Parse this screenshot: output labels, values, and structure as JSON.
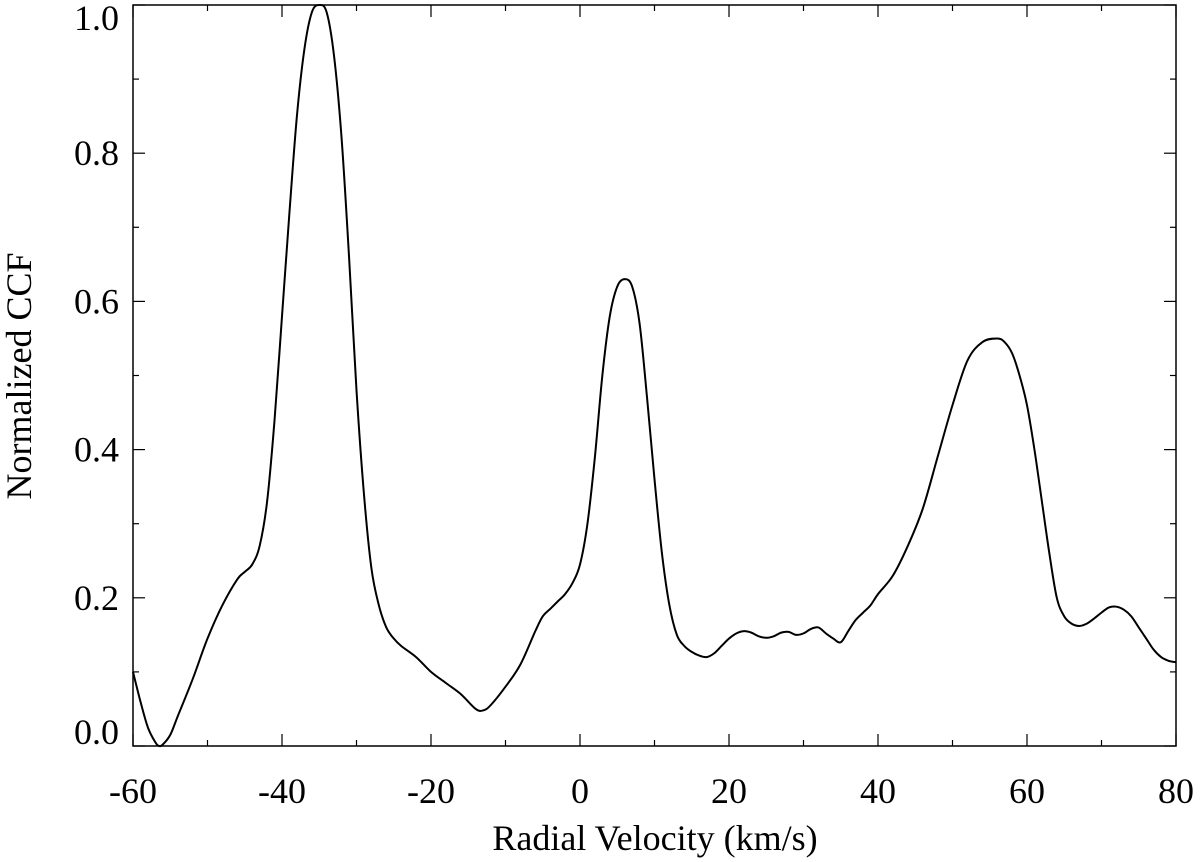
{
  "chart_data": {
    "type": "line",
    "title": "",
    "xlabel": "Radial Velocity (km/s)",
    "ylabel": "Normalized CCF",
    "xlim": [
      -60,
      80
    ],
    "ylim": [
      0.0,
      1.0
    ],
    "x_ticks": [
      -60,
      -40,
      -20,
      0,
      20,
      40,
      60,
      80
    ],
    "x_tick_labels": [
      "-60",
      "-40",
      "-20",
      "0",
      "20",
      "40",
      "60",
      "80"
    ],
    "y_ticks": [
      0.0,
      0.2,
      0.4,
      0.6,
      0.8,
      1.0
    ],
    "y_tick_labels": [
      "0.0",
      "0.2",
      "0.4",
      "0.6",
      "0.8",
      "1.0"
    ],
    "grid": false,
    "line_color": "#000000",
    "series": [
      {
        "x": [
          -60,
          -59,
          -58,
          -57,
          -56.5,
          -56,
          -55,
          -54,
          -52,
          -50,
          -48,
          -46,
          -45,
          -44,
          -43,
          -42,
          -41,
          -40,
          -39,
          -38,
          -37,
          -36,
          -35,
          -34,
          -33,
          -32,
          -31,
          -30,
          -29,
          -28,
          -27,
          -26,
          -25,
          -24,
          -22,
          -20,
          -18,
          -16,
          -14,
          -13,
          -12,
          -10,
          -8,
          -6,
          -5,
          -4,
          -3,
          -2,
          -1,
          0,
          1,
          2,
          3,
          4,
          5,
          6,
          7,
          8,
          9,
          10,
          11,
          12,
          13,
          14,
          15,
          16,
          17,
          18,
          19,
          20,
          21,
          22,
          23,
          24,
          25,
          26,
          27,
          28,
          29,
          30,
          31,
          32,
          33,
          34,
          35,
          36,
          37,
          38,
          39,
          40,
          42,
          44,
          46,
          48,
          50,
          52,
          54,
          56,
          57,
          58,
          59,
          60,
          61,
          62,
          63,
          64,
          65,
          66,
          67,
          68,
          69,
          70,
          71,
          72,
          73,
          74,
          75,
          76,
          77,
          78,
          79,
          80
        ],
        "y": [
          0.1,
          0.06,
          0.025,
          0.005,
          0.0,
          0.002,
          0.015,
          0.04,
          0.09,
          0.145,
          0.19,
          0.225,
          0.235,
          0.245,
          0.27,
          0.33,
          0.44,
          0.58,
          0.72,
          0.85,
          0.94,
          0.99,
          1.0,
          0.99,
          0.93,
          0.82,
          0.66,
          0.48,
          0.34,
          0.24,
          0.19,
          0.16,
          0.145,
          0.135,
          0.12,
          0.1,
          0.085,
          0.07,
          0.05,
          0.048,
          0.055,
          0.08,
          0.11,
          0.155,
          0.175,
          0.185,
          0.195,
          0.205,
          0.22,
          0.245,
          0.3,
          0.39,
          0.5,
          0.58,
          0.62,
          0.63,
          0.62,
          0.57,
          0.47,
          0.36,
          0.26,
          0.19,
          0.15,
          0.135,
          0.127,
          0.122,
          0.12,
          0.125,
          0.135,
          0.145,
          0.152,
          0.155,
          0.153,
          0.148,
          0.146,
          0.148,
          0.153,
          0.154,
          0.15,
          0.152,
          0.158,
          0.16,
          0.152,
          0.145,
          0.14,
          0.155,
          0.17,
          0.18,
          0.19,
          0.205,
          0.23,
          0.27,
          0.32,
          0.39,
          0.46,
          0.52,
          0.545,
          0.55,
          0.545,
          0.53,
          0.5,
          0.46,
          0.4,
          0.33,
          0.26,
          0.2,
          0.175,
          0.165,
          0.162,
          0.165,
          0.172,
          0.18,
          0.187,
          0.188,
          0.184,
          0.175,
          0.16,
          0.145,
          0.13,
          0.12,
          0.115,
          0.113
        ]
      }
    ]
  }
}
